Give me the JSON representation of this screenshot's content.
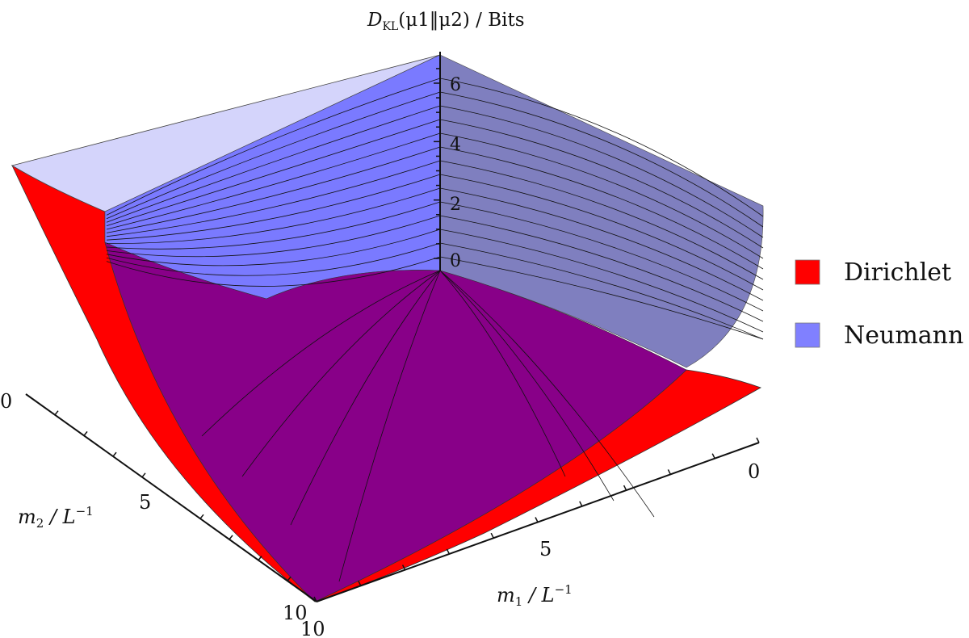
{
  "chart_data": {
    "type": "surface3d",
    "title": "",
    "zlabel": "D_KL(μ1‖μ2) / Bits",
    "zlabel_parts": {
      "main": "D",
      "sub": "KL",
      "args": "(μ1‖μ2)",
      "unit": " / Bits"
    },
    "xlabel": "m1 / L^-1",
    "xlabel_parts": {
      "var": "m",
      "sub": "1",
      "unit": " / L",
      "exp": "−1"
    },
    "ylabel": "m2 / L^-1",
    "ylabel_parts": {
      "var": "m",
      "sub": "2",
      "unit": " / L",
      "exp": "−1"
    },
    "x_range": [
      0,
      10
    ],
    "y_range": [
      0,
      10
    ],
    "z_range": [
      0,
      7
    ],
    "x_ticks": [
      "0",
      "5",
      "10"
    ],
    "y_ticks": [
      "0",
      "5",
      "10"
    ],
    "z_ticks": [
      "0",
      "2",
      "4",
      "6"
    ],
    "legend_position": "right",
    "series": [
      {
        "name": "Dirichlet",
        "color": "#ff0000"
      },
      {
        "name": "Neumann",
        "color": "#8080ff"
      }
    ],
    "overlap_color": "#880088"
  }
}
